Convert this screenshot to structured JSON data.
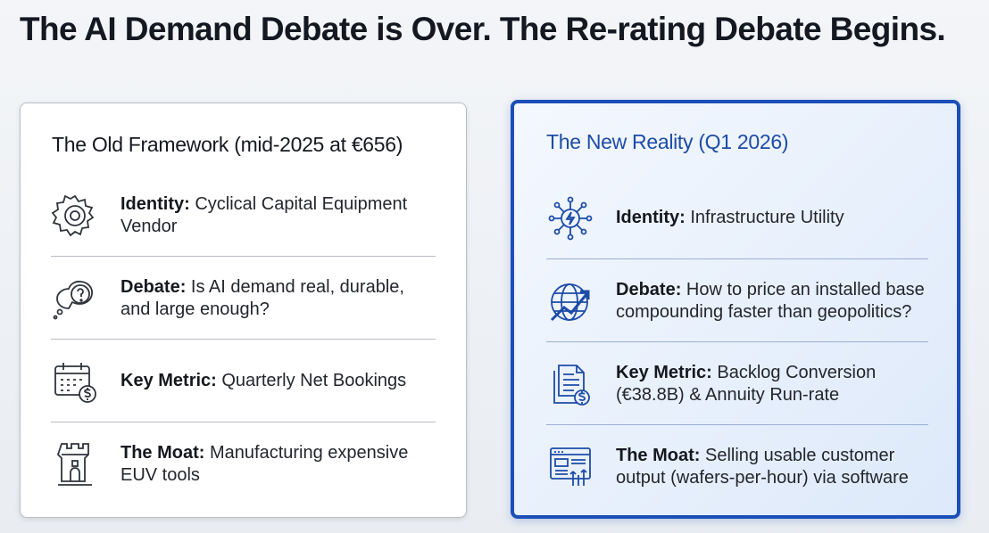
{
  "title": "The AI Demand Debate is Over. The Re-rating Debate Begins.",
  "panels": [
    {
      "heading": "The Old Framework (mid-2025 at €656)",
      "rows": [
        {
          "label": "Identity:",
          "text": "Cyclical Capital Equipment Vendor"
        },
        {
          "label": "Debate:",
          "text": "Is AI demand real, durable, and large enough?"
        },
        {
          "label": "Key Metric:",
          "text": "Quarterly Net Bookings"
        },
        {
          "label": "The Moat:",
          "text": "Manufacturing expensive EUV tools"
        }
      ]
    },
    {
      "heading": "The New Reality (Q1 2026)",
      "rows": [
        {
          "label": "Identity:",
          "text": "Infrastructure Utility"
        },
        {
          "label": "Debate:",
          "text": "How to price an installed base compounding faster than geopolitics?"
        },
        {
          "label": "Key Metric:",
          "text": "Backlog Conversion (€38.8B) & Annuity Run-rate"
        },
        {
          "label": "The Moat:",
          "text": "Selling usable customer output (wafers-per-hour) via software"
        }
      ]
    }
  ]
}
